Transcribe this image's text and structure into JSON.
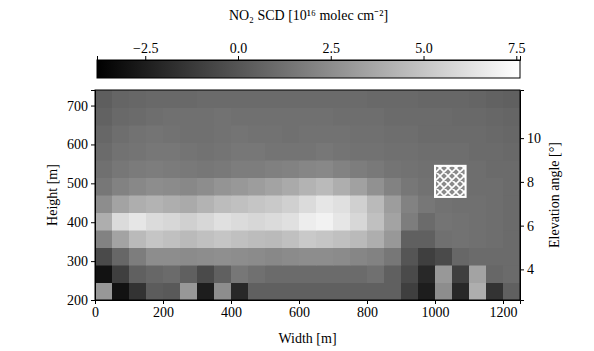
{
  "chart_data": {
    "type": "heatmap",
    "xlabel": "Width [m]",
    "ylabel": "Height [m]",
    "y2label": "Elevation angle [°]",
    "xlim": [
      0,
      1250
    ],
    "xticks": [
      0,
      200,
      400,
      600,
      800,
      1000,
      1200
    ],
    "ylim": [
      200,
      740
    ],
    "yticks": [
      200,
      300,
      400,
      500,
      600,
      700
    ],
    "y2lim": [
      2.6,
      12.2
    ],
    "y2ticks": [
      4,
      6,
      8,
      10
    ],
    "x_edges": [
      0,
      50,
      100,
      150,
      200,
      250,
      300,
      350,
      400,
      450,
      500,
      550,
      600,
      650,
      700,
      750,
      800,
      850,
      900,
      950,
      1000,
      1050,
      1100,
      1150,
      1200,
      1250
    ],
    "y_edges": [
      200,
      245,
      290,
      335,
      380,
      425,
      470,
      515,
      560,
      605,
      650,
      695,
      740
    ],
    "z": [
      [
        3.0,
        -3.0,
        -1.5,
        0.3,
        0.2,
        3.0,
        -2.5,
        2.5,
        -2.0,
        0.5,
        0.5,
        0.5,
        0.5,
        0.5,
        0.5,
        0.5,
        0.5,
        0.5,
        -1.0,
        -2.5,
        2.5,
        -2.0,
        4.0,
        -1.5,
        0.5
      ],
      [
        -3.0,
        -1.0,
        0.5,
        0.8,
        1.0,
        0.5,
        -0.5,
        0.5,
        1.5,
        1.2,
        1.0,
        1.0,
        1.0,
        1.0,
        1.0,
        1.0,
        1.2,
        0.5,
        -0.5,
        -2.0,
        3.0,
        -1.0,
        3.5,
        0.8,
        1.0
      ],
      [
        -0.5,
        0.8,
        1.8,
        2.5,
        2.5,
        2.4,
        2.5,
        2.6,
        2.5,
        2.4,
        2.3,
        2.4,
        2.5,
        2.5,
        2.4,
        2.2,
        2.0,
        1.5,
        0.0,
        -1.0,
        -0.5,
        0.8,
        1.0,
        1.0,
        1.0
      ],
      [
        2.0,
        3.5,
        4.5,
        5.0,
        4.8,
        4.5,
        4.8,
        5.0,
        4.8,
        4.6,
        4.5,
        4.8,
        5.2,
        5.0,
        4.8,
        4.5,
        4.0,
        3.0,
        0.5,
        0.5,
        1.2,
        1.3,
        1.2,
        1.1,
        1.0
      ],
      [
        4.0,
        6.0,
        6.5,
        6.0,
        5.8,
        5.5,
        5.8,
        6.2,
        6.0,
        5.8,
        6.0,
        6.2,
        6.8,
        7.0,
        6.5,
        5.8,
        4.8,
        3.5,
        1.8,
        1.0,
        1.4,
        1.3,
        1.2,
        1.1,
        1.0
      ],
      [
        2.5,
        3.5,
        4.0,
        4.2,
        4.0,
        3.8,
        4.2,
        4.6,
        4.8,
        5.0,
        5.2,
        5.5,
        6.0,
        6.5,
        6.2,
        5.5,
        4.5,
        3.2,
        2.0,
        1.5,
        1.3,
        1.2,
        1.2,
        1.1,
        1.0
      ],
      [
        1.5,
        2.0,
        2.3,
        2.5,
        2.4,
        2.3,
        2.5,
        2.8,
        3.0,
        3.2,
        3.5,
        3.8,
        4.2,
        4.5,
        4.0,
        3.4,
        2.7,
        2.0,
        1.5,
        1.3,
        1.2,
        1.2,
        1.1,
        1.1,
        1.0
      ],
      [
        1.2,
        1.5,
        1.7,
        1.8,
        1.7,
        1.6,
        1.5,
        1.6,
        1.8,
        1.8,
        1.9,
        2.0,
        2.2,
        2.3,
        2.0,
        1.8,
        1.6,
        1.4,
        1.3,
        1.2,
        1.2,
        1.1,
        1.1,
        1.0,
        1.0
      ],
      [
        1.0,
        1.3,
        1.4,
        1.5,
        1.5,
        1.4,
        1.3,
        1.4,
        1.5,
        1.5,
        1.4,
        1.4,
        1.4,
        1.5,
        1.4,
        1.3,
        1.3,
        1.2,
        1.2,
        1.1,
        1.1,
        1.1,
        1.0,
        1.0,
        0.9
      ],
      [
        0.8,
        1.1,
        1.3,
        1.4,
        1.3,
        1.2,
        1.2,
        1.3,
        1.4,
        1.3,
        1.3,
        1.2,
        1.3,
        1.3,
        1.3,
        1.2,
        1.2,
        1.1,
        1.1,
        1.0,
        1.0,
        1.0,
        1.0,
        0.9,
        0.8
      ],
      [
        0.6,
        0.9,
        1.0,
        1.1,
        1.2,
        1.2,
        1.2,
        1.3,
        1.2,
        1.2,
        1.2,
        1.2,
        1.2,
        1.2,
        1.1,
        1.1,
        1.1,
        1.0,
        1.0,
        1.0,
        1.0,
        0.9,
        0.9,
        0.8,
        0.7
      ],
      [
        0.4,
        0.7,
        0.8,
        0.9,
        0.9,
        0.9,
        1.0,
        1.0,
        1.0,
        1.0,
        1.0,
        1.0,
        1.0,
        1.0,
        1.0,
        1.0,
        0.9,
        0.9,
        0.9,
        0.8,
        0.8,
        0.8,
        0.7,
        0.6,
        0.5
      ]
    ],
    "colorbar": {
      "label": "NO₂ SCD [10¹⁶ molec cm⁻²]",
      "range": [
        -3.8,
        7.6
      ],
      "ticks": [
        {
          "value": -2.5,
          "label": "−2.5"
        },
        {
          "value": 0,
          "label": "0.0"
        },
        2.5,
        {
          "value": 5,
          "label": "5.0"
        },
        7.5
      ],
      "colors": [
        "#000000",
        "#ffffff"
      ]
    },
    "hatch_box": {
      "x": [
        1000,
        1090
      ],
      "y": [
        465,
        545
      ]
    }
  }
}
